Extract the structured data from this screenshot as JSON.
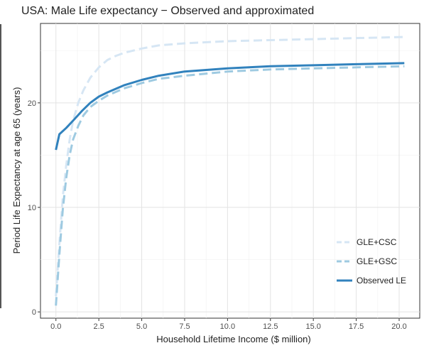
{
  "chart_data": {
    "type": "line",
    "title": "USA: Male Life expectancy − Observed and approximated",
    "xlabel": "Household Lifetime Income ($ million)",
    "ylabel": "Period Life Expectancy at age 65 (years)",
    "xlim": [
      -0.9,
      21.2
    ],
    "ylim": [
      -0.6,
      27.6
    ],
    "x_ticks": [
      0,
      2.5,
      5,
      7.5,
      10,
      12.5,
      15,
      17.5,
      20
    ],
    "x_tick_labels": [
      "0.0",
      "2.5",
      "5.0",
      "7.5",
      "10.0",
      "12.5",
      "15.0",
      "17.5",
      "20.0"
    ],
    "y_ticks": [
      0,
      10,
      20
    ],
    "y_tick_labels": [
      "0",
      "10",
      "20"
    ],
    "grid": true,
    "legend_position": "bottom-right",
    "series": [
      {
        "name": "GLE+CSC",
        "color": "#d6e6f4",
        "dash": "dashed",
        "x": [
          0.0,
          0.2,
          0.4,
          0.6,
          0.8,
          1.0,
          1.3,
          1.6,
          2.0,
          2.5,
          3.0,
          3.5,
          4.0,
          5.0,
          6.0,
          7.5,
          10.0,
          12.5,
          15.0,
          17.5,
          20.3
        ],
        "y": [
          1.5,
          6.5,
          11.0,
          14.0,
          16.5,
          18.3,
          20.0,
          21.2,
          22.4,
          23.4,
          24.1,
          24.5,
          24.8,
          25.2,
          25.5,
          25.7,
          25.9,
          26.0,
          26.1,
          26.2,
          26.3
        ]
      },
      {
        "name": "GLE+GSC",
        "color": "#9ecae1",
        "dash": "dashed",
        "x": [
          0.0,
          0.2,
          0.4,
          0.6,
          0.8,
          1.0,
          1.3,
          1.6,
          2.0,
          2.5,
          3.0,
          4.0,
          5.0,
          6.0,
          7.5,
          10.0,
          12.5,
          15.0,
          17.5,
          20.3
        ],
        "y": [
          0.6,
          5.5,
          9.8,
          12.8,
          15.0,
          16.5,
          17.8,
          18.8,
          19.6,
          20.2,
          20.7,
          21.4,
          21.9,
          22.3,
          22.6,
          23.0,
          23.2,
          23.3,
          23.4,
          23.5
        ]
      },
      {
        "name": "Observed LE",
        "color": "#3182bd",
        "dash": "solid",
        "x": [
          0.0,
          0.2,
          0.6,
          1.0,
          1.5,
          2.0,
          2.5,
          3.0,
          4.0,
          5.0,
          6.0,
          7.5,
          10.0,
          12.5,
          15.0,
          17.5,
          20.3
        ],
        "y": [
          15.5,
          17.0,
          17.6,
          18.3,
          19.2,
          20.0,
          20.6,
          21.0,
          21.7,
          22.2,
          22.6,
          23.0,
          23.3,
          23.5,
          23.6,
          23.7,
          23.8
        ]
      }
    ]
  }
}
